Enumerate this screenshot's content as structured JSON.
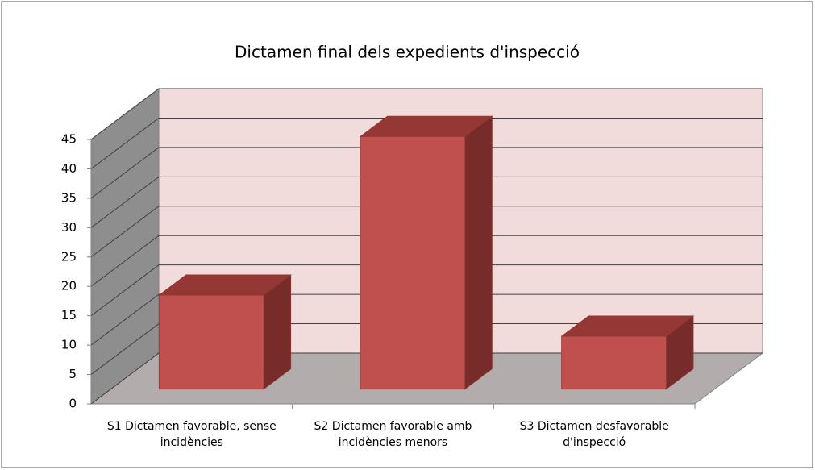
{
  "chart_data": {
    "type": "bar3d",
    "title": "Dictamen final dels expedients d'inspecció",
    "categories": [
      "S1 Dictamen favorable, sense incidències",
      "S2 Dictamen favorable amb incidències menors",
      "S3 Dictamen desfavorable d'inspecció"
    ],
    "values": [
      16,
      43,
      9
    ],
    "color": "#c0504d",
    "ylim": [
      0,
      45
    ],
    "yticks": [
      0,
      5,
      10,
      15,
      20,
      25,
      30,
      35,
      40,
      45
    ],
    "grid": true
  }
}
